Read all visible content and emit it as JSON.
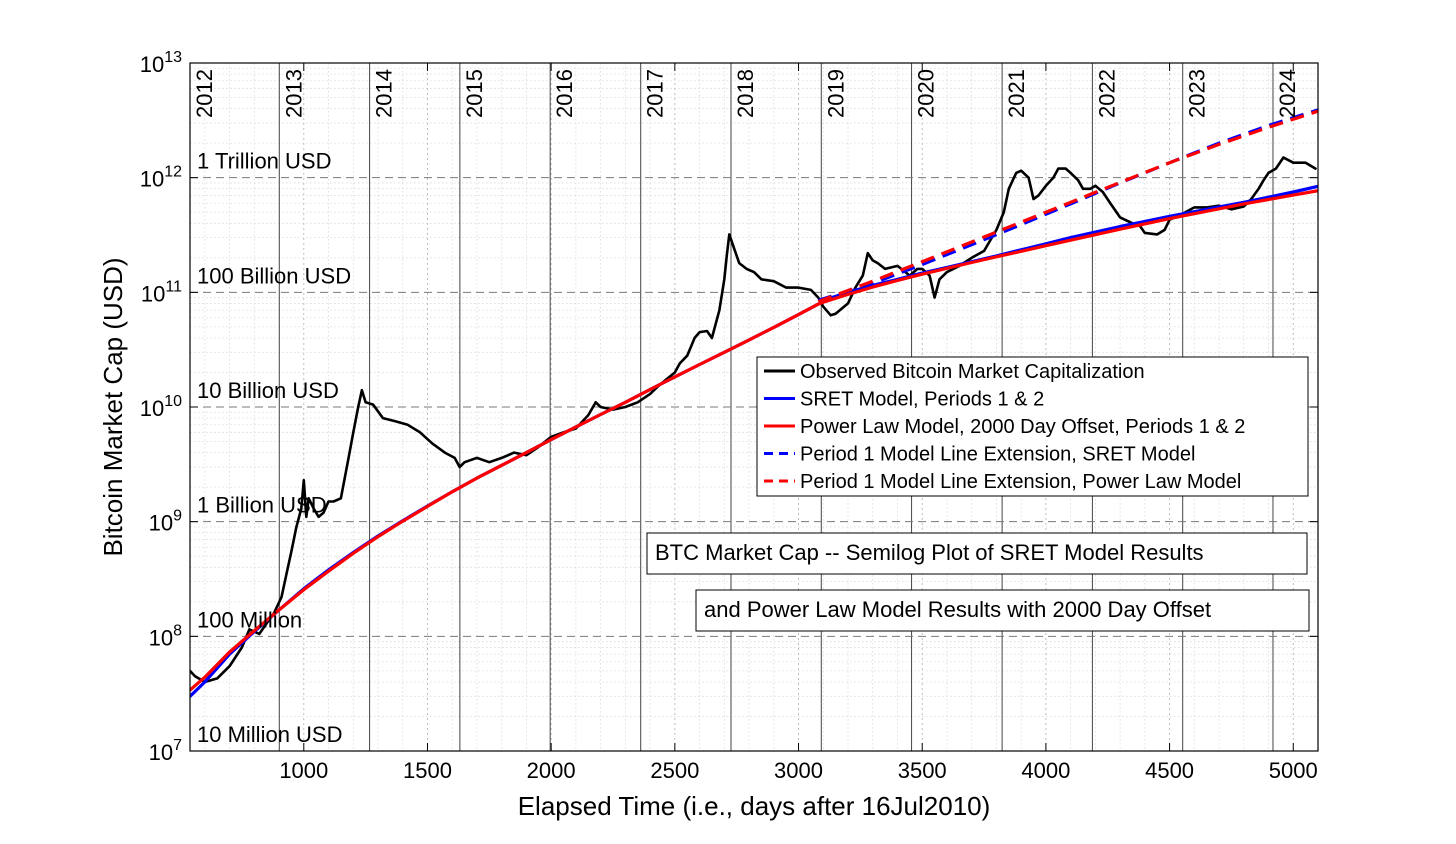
{
  "chart_data": {
    "type": "line",
    "xlabel": "Elapsed Time (i.e., days after 16Jul2010)",
    "ylabel": "Bitcoin Market Cap (USD)",
    "xlim": [
      540,
      5100
    ],
    "ylim": [
      10000000,
      10000000000000
    ],
    "yscale": "log",
    "grid": true,
    "x_ticks": [
      1000,
      1500,
      2000,
      2500,
      3000,
      3500,
      4000,
      4500,
      5000
    ],
    "y_ticks": [
      {
        "value": 10000000,
        "base": "10",
        "exp": "7"
      },
      {
        "value": 100000000,
        "base": "10",
        "exp": "8"
      },
      {
        "value": 1000000000,
        "base": "10",
        "exp": "9"
      },
      {
        "value": 10000000000,
        "base": "10",
        "exp": "10"
      },
      {
        "value": 100000000000,
        "base": "10",
        "exp": "11"
      },
      {
        "value": 1000000000000,
        "base": "10",
        "exp": "12"
      },
      {
        "value": 10000000000000,
        "base": "10",
        "exp": "13"
      }
    ],
    "year_markers": [
      {
        "label": "2012",
        "x": 536
      },
      {
        "label": "2013",
        "x": 901
      },
      {
        "label": "2014",
        "x": 1266
      },
      {
        "label": "2015",
        "x": 1631
      },
      {
        "label": "2016",
        "x": 1996
      },
      {
        "label": "2017",
        "x": 2362
      },
      {
        "label": "2018",
        "x": 2727
      },
      {
        "label": "2019",
        "x": 3092
      },
      {
        "label": "2020",
        "x": 3457
      },
      {
        "label": "2021",
        "x": 3823
      },
      {
        "label": "2022",
        "x": 4188
      },
      {
        "label": "2023",
        "x": 4553
      },
      {
        "label": "2024",
        "x": 4918
      }
    ],
    "reference_lines": [
      {
        "label": "1 Trillion USD",
        "value": 1000000000000
      },
      {
        "label": "100 Billion USD",
        "value": 100000000000
      },
      {
        "label": "10 Billion USD",
        "value": 10000000000
      },
      {
        "label": "1 Billion USD",
        "value": 1000000000
      },
      {
        "label": "100 Million",
        "value": 100000000
      },
      {
        "label": "10 Million USD",
        "value": 10000000
      }
    ],
    "series": [
      {
        "name": "Observed Bitcoin Market Capitalization",
        "color": "#000000",
        "style": "solid",
        "x": [
          540,
          560,
          600,
          650,
          700,
          750,
          780,
          820,
          850,
          880,
          910,
          930,
          950,
          970,
          990,
          1000,
          1010,
          1020,
          1040,
          1060,
          1080,
          1100,
          1120,
          1150,
          1180,
          1200,
          1220,
          1235,
          1250,
          1280,
          1320,
          1370,
          1420,
          1470,
          1520,
          1570,
          1610,
          1630,
          1650,
          1700,
          1750,
          1800,
          1850,
          1900,
          1950,
          2000,
          2050,
          2100,
          2150,
          2180,
          2200,
          2250,
          2300,
          2350,
          2400,
          2430,
          2460,
          2500,
          2520,
          2550,
          2580,
          2600,
          2630,
          2650,
          2680,
          2700,
          2710,
          2720,
          2740,
          2760,
          2790,
          2820,
          2850,
          2900,
          2950,
          3000,
          3050,
          3080,
          3100,
          3130,
          3150,
          3200,
          3230,
          3260,
          3280,
          3300,
          3320,
          3350,
          3400,
          3450,
          3480,
          3500,
          3530,
          3550,
          3570,
          3600,
          3650,
          3700,
          3750,
          3800,
          3830,
          3850,
          3880,
          3900,
          3930,
          3950,
          3970,
          4000,
          4030,
          4050,
          4080,
          4100,
          4130,
          4150,
          4180,
          4200,
          4230,
          4260,
          4300,
          4330,
          4350,
          4380,
          4400,
          4450,
          4480,
          4500,
          4550,
          4600,
          4650,
          4700,
          4750,
          4800,
          4830,
          4860,
          4880,
          4900,
          4930,
          4960,
          5000,
          5050,
          5090
        ],
        "y": [
          50000000.0,
          45000000.0,
          40000000.0,
          43000000.0,
          55000000.0,
          80000000.0,
          115000000.0,
          105000000.0,
          130000000.0,
          160000000.0,
          220000000.0,
          350000000.0,
          550000000.0,
          900000000.0,
          1300000000.0,
          2300000000.0,
          1100000000.0,
          1600000000.0,
          1300000000.0,
          1100000000.0,
          1200000000.0,
          1500000000.0,
          1500000000.0,
          1600000000.0,
          3500000000.0,
          6000000000.0,
          10000000000.0,
          14000000000.0,
          11000000000.0,
          10500000000.0,
          8000000000.0,
          7500000000.0,
          7000000000.0,
          6000000000.0,
          4800000000.0,
          4000000000.0,
          3600000000.0,
          3000000000.0,
          3300000000.0,
          3600000000.0,
          3300000000.0,
          3600000000.0,
          4000000000.0,
          3800000000.0,
          4500000000.0,
          5500000000.0,
          6000000000.0,
          6500000000.0,
          8500000000.0,
          11000000000.0,
          10000000000.0,
          9500000000.0,
          10000000000.0,
          11000000000.0,
          13000000000.0,
          15000000000.0,
          17000000000.0,
          20000000000.0,
          24000000000.0,
          28000000000.0,
          40000000000.0,
          45000000000.0,
          46000000000.0,
          40000000000.0,
          70000000000.0,
          130000000000.0,
          210000000000.0,
          320000000000.0,
          240000000000.0,
          180000000000.0,
          160000000000.0,
          150000000000.0,
          130000000000.0,
          125000000000.0,
          110000000000.0,
          110000000000.0,
          105000000000.0,
          90000000000.0,
          75000000000.0,
          63000000000.0,
          65000000000.0,
          80000000000.0,
          110000000000.0,
          140000000000.0,
          220000000000.0,
          190000000000.0,
          180000000000.0,
          160000000000.0,
          170000000000.0,
          140000000000.0,
          160000000000.0,
          160000000000.0,
          140000000000.0,
          90000000000.0,
          130000000000.0,
          150000000000.0,
          170000000000.0,
          200000000000.0,
          230000000000.0,
          350000000000.0,
          500000000000.0,
          800000000000.0,
          1100000000000.0,
          1150000000000.0,
          1000000000000.0,
          650000000000.0,
          700000000000.0,
          850000000000.0,
          1000000000000.0,
          1200000000000.0,
          1200000000000.0,
          1100000000000.0,
          950000000000.0,
          800000000000.0,
          800000000000.0,
          850000000000.0,
          750000000000.0,
          600000000000.0,
          450000000000.0,
          420000000000.0,
          400000000000.0,
          380000000000.0,
          330000000000.0,
          320000000000.0,
          350000000000.0,
          430000000000.0,
          480000000000.0,
          550000000000.0,
          550000000000.0,
          570000000000.0,
          530000000000.0,
          560000000000.0,
          650000000000.0,
          800000000000.0,
          950000000000.0,
          1100000000000.0,
          1200000000000.0,
          1500000000000.0,
          1350000000000.0,
          1350000000000.0,
          1200000000000.0
        ]
      },
      {
        "name": "SRET Model, Periods 1 & 2",
        "color": "#0000ff",
        "style": "solid",
        "x": [
          540,
          600,
          700,
          800,
          900,
          1000,
          1100,
          1200,
          1300,
          1400,
          1500,
          1600,
          1700,
          1800,
          1900,
          2000,
          2100,
          2200,
          2300,
          2400,
          2500,
          2600,
          2700,
          2800,
          2900,
          3000,
          3080,
          3100,
          3200,
          3300,
          3400,
          3500,
          3600,
          3700,
          3800,
          3900,
          4000,
          4100,
          4200,
          4300,
          4400,
          4500,
          4600,
          4700,
          4800,
          4900,
          5000,
          5100
        ],
        "y": [
          30000000.0,
          40000000.0,
          70000000.0,
          110000000.0,
          170000000.0,
          260000000.0,
          380000000.0,
          540000000.0,
          750000000.0,
          1020000000.0,
          1370000000.0,
          1820000000.0,
          2400000000.0,
          3100000000.0,
          4000000000.0,
          5200000000.0,
          6700000000.0,
          8600000000.0,
          11000000000.0,
          14200000000.0,
          18300000000.0,
          23500000000.0,
          30000000000.0,
          38500000000.0,
          49500000000.0,
          64000000000.0,
          79000000000.0,
          85000000000.0,
          100000000000.0,
          115000000000.0,
          130000000000.0,
          147000000000.0,
          165000000000.0,
          185000000000.0,
          208000000000.0,
          235000000000.0,
          265000000000.0,
          300000000000.0,
          335000000000.0,
          375000000000.0,
          415000000000.0,
          460000000000.0,
          505000000000.0,
          555000000000.0,
          610000000000.0,
          675000000000.0,
          750000000000.0,
          840000000000.0
        ]
      },
      {
        "name": "Power Law Model, 2000 Day Offset, Periods 1 & 2",
        "color": "#ff0000",
        "style": "solid",
        "x": [
          540,
          600,
          700,
          800,
          900,
          1000,
          1100,
          1200,
          1300,
          1400,
          1500,
          1600,
          1700,
          1800,
          1900,
          2000,
          2100,
          2200,
          2300,
          2400,
          2500,
          2600,
          2700,
          2800,
          2900,
          3000,
          3080,
          3100,
          3200,
          3300,
          3400,
          3500,
          3600,
          3700,
          3800,
          3900,
          4000,
          4100,
          4200,
          4300,
          4400,
          4500,
          4600,
          4700,
          4800,
          4900,
          5000,
          5100
        ],
        "y": [
          34000000.0,
          44000000.0,
          73000000.0,
          112000000.0,
          170000000.0,
          255000000.0,
          370000000.0,
          530000000.0,
          740000000.0,
          1010000000.0,
          1360000000.0,
          1820000000.0,
          2400000000.0,
          3100000000.0,
          4000000000.0,
          5200000000.0,
          6700000000.0,
          8600000000.0,
          11000000000.0,
          14200000000.0,
          18300000000.0,
          23500000000.0,
          30000000000.0,
          38500000000.0,
          49500000000.0,
          64000000000.0,
          79000000000.0,
          82000000000.0,
          96000000000.0,
          111000000000.0,
          127000000000.0,
          144000000000.0,
          162000000000.0,
          182000000000.0,
          204000000000.0,
          228000000000.0,
          255000000000.0,
          285000000000.0,
          318000000000.0,
          355000000000.0,
          395000000000.0,
          440000000000.0,
          485000000000.0,
          535000000000.0,
          590000000000.0,
          645000000000.0,
          705000000000.0,
          770000000000.0
        ]
      },
      {
        "name": "Period 1 Model Line Extension, SRET Model",
        "color": "#0000ff",
        "style": "dashed",
        "x": [
          3080,
          3300,
          3500,
          3700,
          3900,
          4100,
          4300,
          4500,
          4700,
          4900,
          5100
        ],
        "y": [
          85000000000.0,
          120000000000.0,
          175000000000.0,
          260000000000.0,
          390000000000.0,
          590000000000.0,
          900000000000.0,
          1350000000000.0,
          2000000000000.0,
          2850000000000.0,
          3900000000000.0
        ]
      },
      {
        "name": "Period 1 Model Line Extension, Power Law Model",
        "color": "#ff0000",
        "style": "dashed",
        "x": [
          3080,
          3300,
          3500,
          3700,
          3900,
          4100,
          4300,
          4500,
          4700,
          4900,
          5100
        ],
        "y": [
          83000000000.0,
          125000000000.0,
          185000000000.0,
          275000000000.0,
          410000000000.0,
          610000000000.0,
          910000000000.0,
          1350000000000.0,
          1950000000000.0,
          2750000000000.0,
          3800000000000.0
        ]
      }
    ],
    "legend": {
      "placement": "center-right"
    },
    "annotations": [
      "BTC Market Cap -- Semilog Plot of SRET Model Results",
      "and Power Law Model Results with 2000 Day Offset"
    ]
  }
}
